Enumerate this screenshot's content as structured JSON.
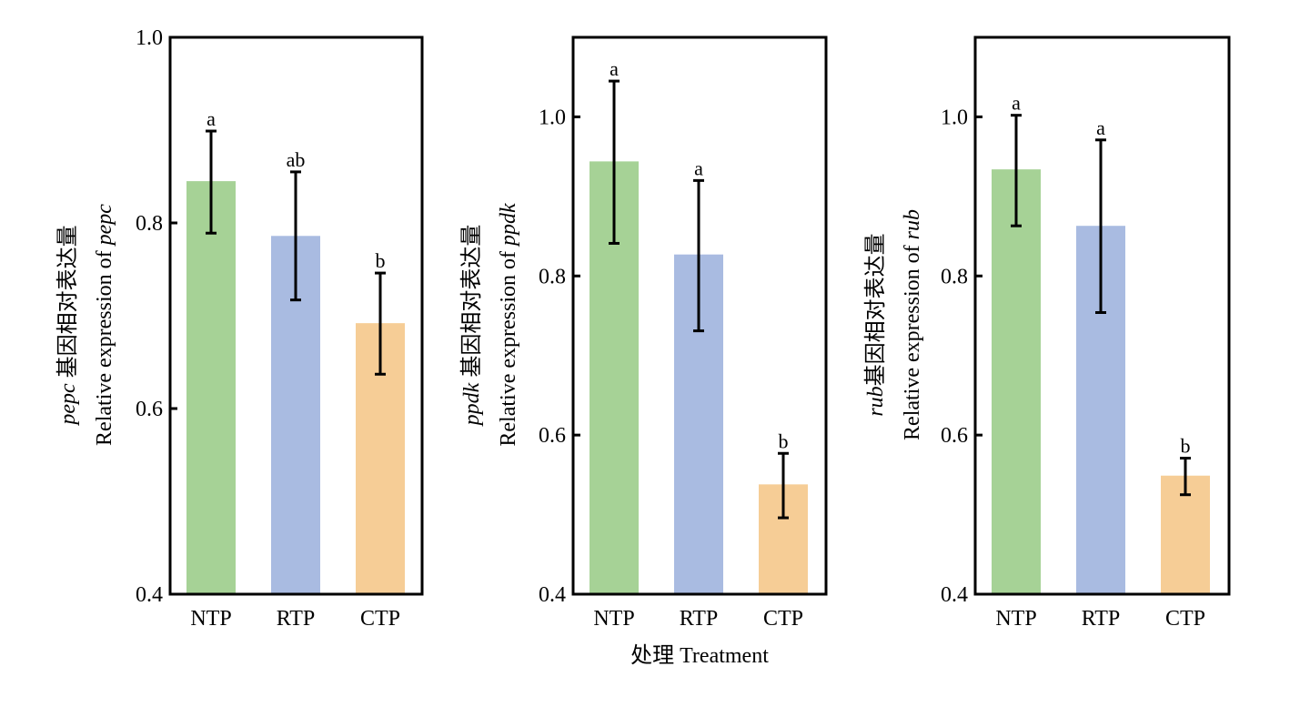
{
  "chart_data": [
    {
      "type": "bar",
      "gene": "pepc",
      "ylabel_line1_italic": "pepc",
      "ylabel_line1_cn": " 基因相对表达量",
      "ylabel_line2_prefix": "Relative expression of ",
      "ylabel_line2_italic": "pepc",
      "categories": [
        "NTP",
        "RTP",
        "CTP"
      ],
      "values": [
        0.845,
        0.786,
        0.692
      ],
      "error_upper": [
        0.899,
        0.855,
        0.746
      ],
      "error_lower": [
        0.789,
        0.717,
        0.637
      ],
      "significance": [
        "a",
        "ab",
        "b"
      ],
      "colors": [
        "#a6d296",
        "#a9bbe1",
        "#f6cd96"
      ],
      "ylim": [
        0.4,
        1.0
      ],
      "yticks": [
        0.4,
        0.6,
        0.8,
        1.0
      ],
      "ytick_labels": [
        "0.4",
        "0.6",
        "0.8",
        "1.0"
      ],
      "grid": false
    },
    {
      "type": "bar",
      "gene": "ppdk",
      "ylabel_line1_italic": "ppdk",
      "ylabel_line1_cn": " 基因相对表达量",
      "ylabel_line2_prefix": "Relative expression of ",
      "ylabel_line2_italic": "ppdk",
      "categories": [
        "NTP",
        "RTP",
        "CTP"
      ],
      "values": [
        0.944,
        0.827,
        0.538
      ],
      "error_upper": [
        1.045,
        0.92,
        0.577
      ],
      "error_lower": [
        0.841,
        0.731,
        0.496
      ],
      "significance": [
        "a",
        "a",
        "b"
      ],
      "colors": [
        "#a6d296",
        "#a9bbe1",
        "#f6cd96"
      ],
      "ylim": [
        0.4,
        1.1
      ],
      "yticks": [
        0.4,
        0.6,
        0.8,
        1.0
      ],
      "ytick_labels": [
        "0.4",
        "0.6",
        "0.8",
        "1.0"
      ],
      "grid": false
    },
    {
      "type": "bar",
      "gene": "rub",
      "ylabel_line1_italic": "rub",
      "ylabel_line1_cn": "基因相对表达量",
      "ylabel_line2_prefix": "Relative expression of ",
      "ylabel_line2_italic": "rub",
      "categories": [
        "NTP",
        "RTP",
        "CTP"
      ],
      "values": [
        0.934,
        0.863,
        0.549
      ],
      "error_upper": [
        1.002,
        0.971,
        0.571
      ],
      "error_lower": [
        0.863,
        0.754,
        0.525
      ],
      "significance": [
        "a",
        "a",
        "b"
      ],
      "colors": [
        "#a6d296",
        "#a9bbe1",
        "#f6cd96"
      ],
      "ylim": [
        0.4,
        1.1
      ],
      "yticks": [
        0.4,
        0.6,
        0.8,
        1.0
      ],
      "ytick_labels": [
        "0.4",
        "0.6",
        "0.8",
        "1.0"
      ],
      "grid": false
    }
  ],
  "xlabel": "处理 Treatment"
}
